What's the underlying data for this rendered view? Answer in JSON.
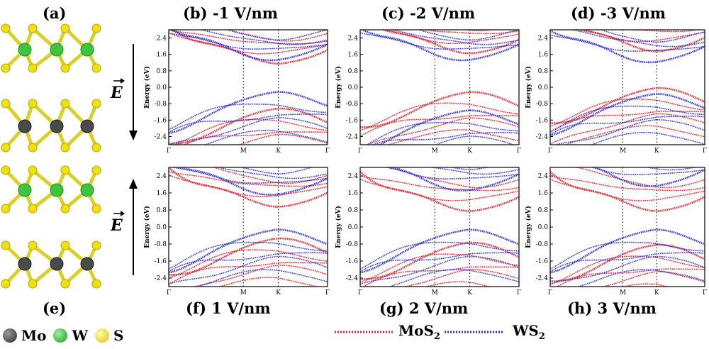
{
  "figure": {
    "panel_labels": {
      "a": "(a)",
      "b": "(b)",
      "c": "(c)",
      "d": "(d)",
      "e": "(e)",
      "f": "(f)",
      "g": "(g)",
      "h": "(h)"
    },
    "field_labels": {
      "b": "-1 V/nm",
      "c": "-2 V/nm",
      "d": "-3 V/nm",
      "f": "1 V/nm",
      "g": "2 V/nm",
      "h": "3 V/nm"
    },
    "field_symbol": "E",
    "atom_legend": [
      {
        "label": "Mo",
        "color": "#4a4a4a"
      },
      {
        "label": "W",
        "color": "#3ec53e"
      },
      {
        "label": "S",
        "color": "#f0e010"
      }
    ],
    "band_legend": [
      {
        "label_main": "MoS",
        "label_sub": "2",
        "color": "#e0202a"
      },
      {
        "label_main": "WS",
        "label_sub": "2",
        "color": "#2a2ad8"
      }
    ]
  },
  "chart_data": [
    {
      "type": "line",
      "panel": "b",
      "field": "-1 V/nm",
      "ylabel": "Energy (eV)",
      "ylim": [
        -2.8,
        2.8
      ],
      "yticks": [
        "2.4",
        "1.6",
        "0.8",
        "0.0",
        "-0.8",
        "-1.6",
        "-2.4"
      ],
      "xticks": [
        "Γ",
        "M",
        "K",
        "Γ"
      ],
      "series": [
        {
          "name": "MoS2",
          "cbm": 1.3,
          "vbm": -1.2
        },
        {
          "name": "WS2",
          "cbm": 1.4,
          "vbm": -0.4
        }
      ]
    },
    {
      "type": "line",
      "panel": "c",
      "field": "-2 V/nm",
      "ylabel": "Energy (eV)",
      "ylim": [
        -2.8,
        2.8
      ],
      "yticks": [
        "2.4",
        "1.6",
        "0.8",
        "0.0",
        "-0.8",
        "-1.6",
        "-2.4"
      ],
      "xticks": [
        "Γ",
        "M",
        "K",
        "Γ"
      ],
      "series": [
        {
          "name": "MoS2",
          "cbm": 1.8,
          "vbm": -0.4
        },
        {
          "name": "WS2",
          "cbm": 1.4,
          "vbm": -1.3
        }
      ]
    },
    {
      "type": "line",
      "panel": "d",
      "field": "-3 V/nm",
      "ylabel": "Energy (eV)",
      "ylim": [
        -2.8,
        2.8
      ],
      "yticks": [
        "2.4",
        "1.6",
        "0.8",
        "0.0",
        "-0.8",
        "-1.6",
        "-2.4"
      ],
      "xticks": [
        "Γ",
        "M",
        "K",
        "Γ"
      ],
      "series": [
        {
          "name": "MoS2",
          "cbm": 1.9,
          "vbm": -0.2
        },
        {
          "name": "WS2",
          "cbm": 1.3,
          "vbm": -0.5
        }
      ]
    },
    {
      "type": "line",
      "panel": "f",
      "field": "1 V/nm",
      "ylabel": "Energy (eV)",
      "ylim": [
        -2.8,
        2.8
      ],
      "yticks": [
        "2.4",
        "1.6",
        "0.8",
        "0.0",
        "-0.8",
        "-1.6",
        "-2.4"
      ],
      "xticks": [
        "Γ",
        "M",
        "K",
        "Γ"
      ],
      "series": [
        {
          "name": "MoS2",
          "cbm": 1.1,
          "vbm": -0.7
        },
        {
          "name": "WS2",
          "cbm": 1.6,
          "vbm": -0.3
        }
      ]
    },
    {
      "type": "line",
      "panel": "g",
      "field": "2 V/nm",
      "ylabel": "Energy (eV)",
      "ylim": [
        -2.8,
        2.8
      ],
      "yticks": [
        "2.4",
        "1.6",
        "0.8",
        "0.0",
        "-0.8",
        "-1.6",
        "-2.4"
      ],
      "xticks": [
        "Γ",
        "M",
        "K",
        "Γ"
      ],
      "series": [
        {
          "name": "MoS2",
          "cbm": 0.9,
          "vbm": -0.9
        },
        {
          "name": "WS2",
          "cbm": 1.8,
          "vbm": -0.3
        }
      ]
    },
    {
      "type": "line",
      "panel": "h",
      "field": "3 V/nm",
      "ylabel": "Energy (eV)",
      "ylim": [
        -2.8,
        2.8
      ],
      "yticks": [
        "2.4",
        "1.6",
        "0.8",
        "0.0",
        "-0.8",
        "-1.6",
        "-2.4"
      ],
      "xticks": [
        "Γ",
        "M",
        "K",
        "Γ"
      ],
      "series": [
        {
          "name": "MoS2",
          "cbm": 0.9,
          "vbm": -1.0
        },
        {
          "name": "WS2",
          "cbm": 2.0,
          "vbm": -0.3
        }
      ]
    }
  ]
}
